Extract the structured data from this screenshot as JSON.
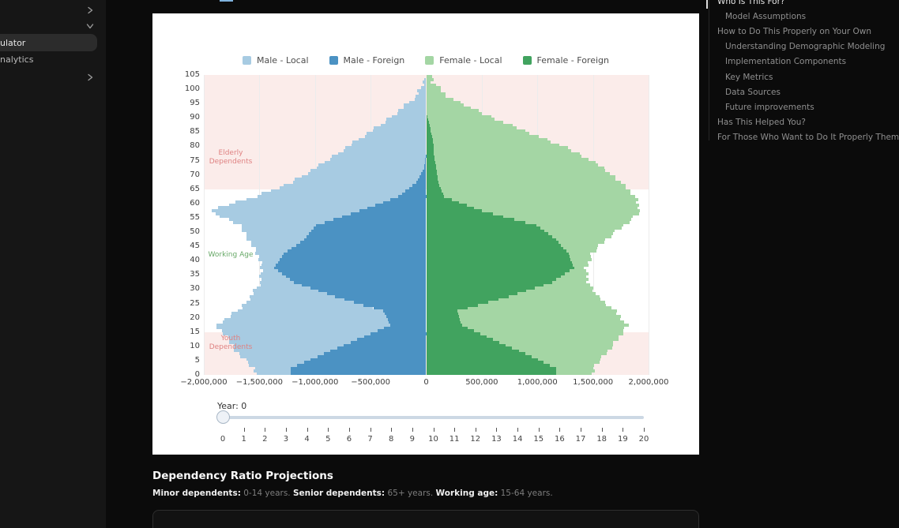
{
  "sidebar": {
    "items": [
      {
        "label": "ulator",
        "selected": true
      },
      {
        "label": "nalytics",
        "selected": false
      }
    ]
  },
  "toc": {
    "items": [
      {
        "label": "Who Is This For?",
        "level": 0,
        "active": true
      },
      {
        "label": "Model Assumptions",
        "level": 1,
        "active": false
      },
      {
        "label": "How to Do This Properly on Your Own",
        "level": 0,
        "active": false
      },
      {
        "label": "Understanding Demographic Modeling",
        "level": 1,
        "active": false
      },
      {
        "label": "Implementation Components",
        "level": 1,
        "active": false
      },
      {
        "label": "Key Metrics",
        "level": 1,
        "active": false
      },
      {
        "label": "Data Sources",
        "level": 1,
        "active": false
      },
      {
        "label": "Future improvements",
        "level": 1,
        "active": false
      },
      {
        "label": "Has This Helped You?",
        "level": 0,
        "active": false
      },
      {
        "label": "For Those Who Want to Do It Properly Themselves",
        "level": 0,
        "active": false
      }
    ]
  },
  "chart_data": {
    "type": "bar",
    "subtype": "population-pyramid-horizontal-stacked",
    "title": "",
    "legend_position": "top-center",
    "grid": true,
    "colors": {
      "male_local": "#a7cbe2",
      "male_foreign": "#4b92c3",
      "female_local": "#a4d6a4",
      "female_foreign": "#41a35f",
      "dependent_band": "#fbecea",
      "annotation_red": "#df8282",
      "annotation_green": "#68a968"
    },
    "legend": [
      {
        "name": "Male - Local",
        "color": "#a7cbe2"
      },
      {
        "name": "Male - Foreign",
        "color": "#4b92c3"
      },
      {
        "name": "Female - Local",
        "color": "#a4d6a4"
      },
      {
        "name": "Female - Foreign",
        "color": "#41a35f"
      }
    ],
    "age_groups": [
      "0-4",
      "5-9",
      "10-14",
      "15-19",
      "20-24",
      "25-29",
      "30-34",
      "35-39",
      "40-44",
      "45-49",
      "50-54",
      "55-59",
      "60-64",
      "65-69",
      "70-74",
      "75-79",
      "80-84",
      "85-89",
      "90-94",
      "95-99",
      "100-104"
    ],
    "units": "persons (millions), male plotted left of 0, female right",
    "series": [
      {
        "name": "Male - Local",
        "values": [
          0.33,
          0.77,
          1.16,
          1.57,
          1.3,
          0.76,
          0.3,
          0.11,
          0.24,
          0.5,
          0.69,
          1.35,
          1.28,
          1.12,
          0.97,
          0.8,
          0.61,
          0.41,
          0.25,
          0.09,
          0.02
        ]
      },
      {
        "name": "Male - Foreign",
        "values": [
          1.22,
          0.92,
          0.62,
          0.32,
          0.39,
          0.82,
          1.19,
          1.37,
          1.28,
          1.1,
          0.99,
          0.6,
          0.25,
          0.09,
          0.02,
          0.0,
          0.0,
          0.0,
          0.0,
          0.0,
          0.0
        ]
      },
      {
        "name": "Female - Local",
        "values": [
          0.33,
          0.73,
          1.12,
          1.49,
          1.42,
          0.8,
          0.33,
          0.11,
          0.21,
          0.45,
          0.79,
          1.43,
          1.72,
          1.64,
          1.51,
          1.3,
          1.02,
          0.73,
          0.45,
          0.2,
          0.06
        ]
      },
      {
        "name": "Female - Foreign",
        "values": [
          1.17,
          0.89,
          0.6,
          0.32,
          0.28,
          0.74,
          1.13,
          1.33,
          1.28,
          1.17,
          0.99,
          0.5,
          0.16,
          0.11,
          0.09,
          0.07,
          0.06,
          0.03,
          0.0,
          0.0,
          0.0
        ]
      }
    ],
    "xlim": [
      -2000000,
      2000000
    ],
    "ylim": [
      0,
      105
    ],
    "x_ticks": [
      "−2,000,000",
      "−1,500,000",
      "−1,000,000",
      "−500,000",
      "0",
      "500,000",
      "1,000,000",
      "1,500,000",
      "2,000,000"
    ],
    "y_ticks": [
      0,
      5,
      10,
      15,
      20,
      25,
      30,
      35,
      40,
      45,
      50,
      55,
      60,
      65,
      70,
      75,
      80,
      85,
      90,
      95,
      100,
      105
    ],
    "bands": [
      {
        "name": "elderly",
        "from_age": 65,
        "to_age": 105
      },
      {
        "name": "youth",
        "from_age": 0,
        "to_age": 15
      }
    ],
    "annotations": [
      {
        "text_lines": [
          "Elderly",
          "Dependents"
        ],
        "color": "#df8282",
        "age": 76
      },
      {
        "text_lines": [
          "Working Age"
        ],
        "color": "#68a968",
        "age": 42
      },
      {
        "text_lines": [
          "Youth",
          "Dependents"
        ],
        "color": "#df8282",
        "age": 11
      }
    ]
  },
  "slider": {
    "label": "Year: 0",
    "min": 0,
    "max": 20,
    "value": 0,
    "tick_labels": [
      "0",
      "1",
      "2",
      "3",
      "4",
      "5",
      "6",
      "7",
      "8",
      "9",
      "10",
      "11",
      "12",
      "13",
      "14",
      "15",
      "16",
      "17",
      "18",
      "19",
      "20"
    ]
  },
  "dependency": {
    "title": "Dependency Ratio Projections",
    "minor_label": "Minor dependents:",
    "minor_value": " 0-14 years. ",
    "senior_label": "Senior dependents:",
    "senior_value": " 65+ years. ",
    "working_label": "Working age:",
    "working_value": " 15-64 years."
  }
}
